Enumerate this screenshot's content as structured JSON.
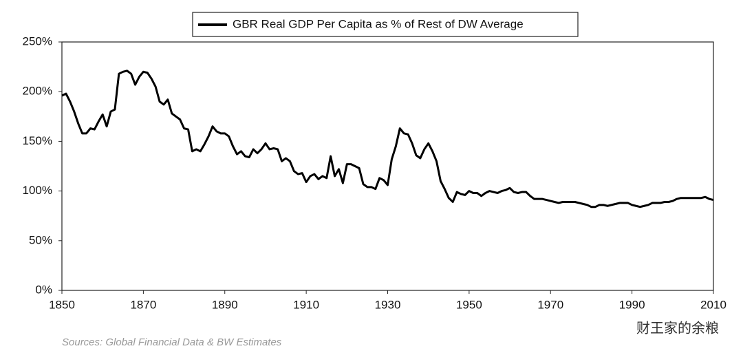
{
  "chart_data": {
    "type": "line",
    "series": [
      {
        "name": "GBR Real GDP Per Capita as % of Rest of DW Average",
        "color": "#000000",
        "values": [
          196,
          198,
          190,
          180,
          168,
          158,
          158,
          163,
          162,
          170,
          177,
          165,
          180,
          182,
          218,
          220,
          221,
          218,
          207,
          215,
          220,
          219,
          213,
          205,
          190,
          187,
          192,
          178,
          175,
          172,
          163,
          162,
          140,
          142,
          140,
          147,
          155,
          165,
          160,
          158,
          158,
          155,
          145,
          137,
          140,
          135,
          134,
          142,
          138,
          142,
          148,
          142,
          143,
          142,
          130,
          133,
          130,
          120,
          117,
          118,
          109,
          115,
          117,
          112,
          115,
          113,
          135,
          115,
          122,
          108,
          127,
          127,
          125,
          123,
          107,
          104,
          104,
          102,
          113,
          111,
          106,
          132,
          145,
          163,
          158,
          157,
          148,
          136,
          133,
          142,
          148,
          140,
          130,
          110,
          102,
          93,
          89,
          99,
          97,
          96,
          100,
          98,
          98,
          95,
          98,
          100,
          99,
          98,
          100,
          101,
          103,
          99,
          98,
          99,
          99,
          95,
          92,
          92,
          92,
          91,
          90,
          89,
          88,
          89,
          89,
          89,
          89,
          88,
          87,
          86,
          84,
          84,
          86,
          86,
          85,
          86,
          87,
          88,
          88,
          88,
          86,
          85,
          84,
          85,
          86,
          88,
          88,
          88,
          89,
          89,
          90,
          92,
          93,
          93,
          93,
          93,
          93,
          93,
          94,
          92,
          91
        ]
      }
    ],
    "x": [
      1850,
      1851,
      1852,
      1853,
      1854,
      1855,
      1856,
      1857,
      1858,
      1859,
      1860,
      1861,
      1862,
      1863,
      1864,
      1865,
      1866,
      1867,
      1868,
      1869,
      1870,
      1871,
      1872,
      1873,
      1874,
      1875,
      1876,
      1877,
      1878,
      1879,
      1880,
      1881,
      1882,
      1883,
      1884,
      1885,
      1886,
      1887,
      1888,
      1889,
      1890,
      1891,
      1892,
      1893,
      1894,
      1895,
      1896,
      1897,
      1898,
      1899,
      1900,
      1901,
      1902,
      1903,
      1904,
      1905,
      1906,
      1907,
      1908,
      1909,
      1910,
      1911,
      1912,
      1913,
      1914,
      1915,
      1916,
      1917,
      1918,
      1919,
      1920,
      1921,
      1922,
      1923,
      1924,
      1925,
      1926,
      1927,
      1928,
      1929,
      1930,
      1931,
      1932,
      1933,
      1934,
      1935,
      1936,
      1937,
      1938,
      1939,
      1940,
      1941,
      1942,
      1943,
      1944,
      1945,
      1946,
      1947,
      1948,
      1949,
      1950,
      1951,
      1952,
      1953,
      1954,
      1955,
      1956,
      1957,
      1958,
      1959,
      1960,
      1961,
      1962,
      1963,
      1964,
      1965,
      1966,
      1967,
      1968,
      1969,
      1970,
      1971,
      1972,
      1973,
      1974,
      1975,
      1976,
      1977,
      1978,
      1979,
      1980,
      1981,
      1982,
      1983,
      1984,
      1985,
      1986,
      1987,
      1988,
      1989,
      1990,
      1991,
      1992,
      1993,
      1994,
      1995,
      1996,
      1997,
      1998,
      1999,
      2000,
      2001,
      2002,
      2003,
      2004,
      2005,
      2006,
      2007,
      2008,
      2009,
      2010
    ],
    "xlim": [
      1850,
      2010
    ],
    "xticks": [
      1850,
      1870,
      1890,
      1910,
      1930,
      1950,
      1970,
      1990,
      2010
    ],
    "ylim": [
      0,
      250
    ],
    "yticks": [
      {
        "value": 0,
        "label": "0%"
      },
      {
        "value": 50,
        "label": "50%"
      },
      {
        "value": 100,
        "label": "100%"
      },
      {
        "value": 150,
        "label": "150%"
      },
      {
        "value": 200,
        "label": "200%"
      },
      {
        "value": 250,
        "label": "250%"
      }
    ],
    "grid": false,
    "legend": "top",
    "source": "Sources: Global Financial Data & BW Estimates",
    "watermark": "财王家的余粮"
  }
}
